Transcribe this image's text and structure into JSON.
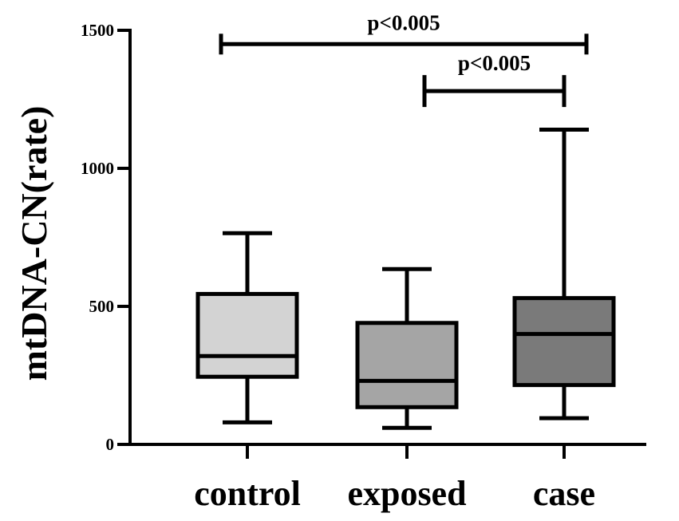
{
  "chart_data": {
    "type": "box",
    "ylabel": "mtDNA-CN(rate)",
    "xlabel": "",
    "ylim": [
      0,
      1500
    ],
    "yticks": [
      0,
      500,
      1000,
      1500
    ],
    "categories": [
      "control",
      "exposed",
      "case"
    ],
    "boxes": [
      {
        "category": "control",
        "min": 80,
        "q1": 245,
        "median": 320,
        "q3": 545,
        "max": 765,
        "fill": "#d3d3d3"
      },
      {
        "category": "exposed",
        "min": 60,
        "q1": 135,
        "median": 230,
        "q3": 440,
        "max": 635,
        "fill": "#a5a5a5"
      },
      {
        "category": "case",
        "min": 95,
        "q1": 215,
        "median": 400,
        "q3": 530,
        "max": 1140,
        "fill": "#7a7a7a"
      }
    ],
    "significance": [
      {
        "from": "control",
        "to": "case",
        "label": "p<0.005",
        "y": 1450,
        "capped": false
      },
      {
        "from": "exposed",
        "to": "case",
        "label": "p<0.005",
        "y": 1280,
        "capped": true
      }
    ]
  }
}
